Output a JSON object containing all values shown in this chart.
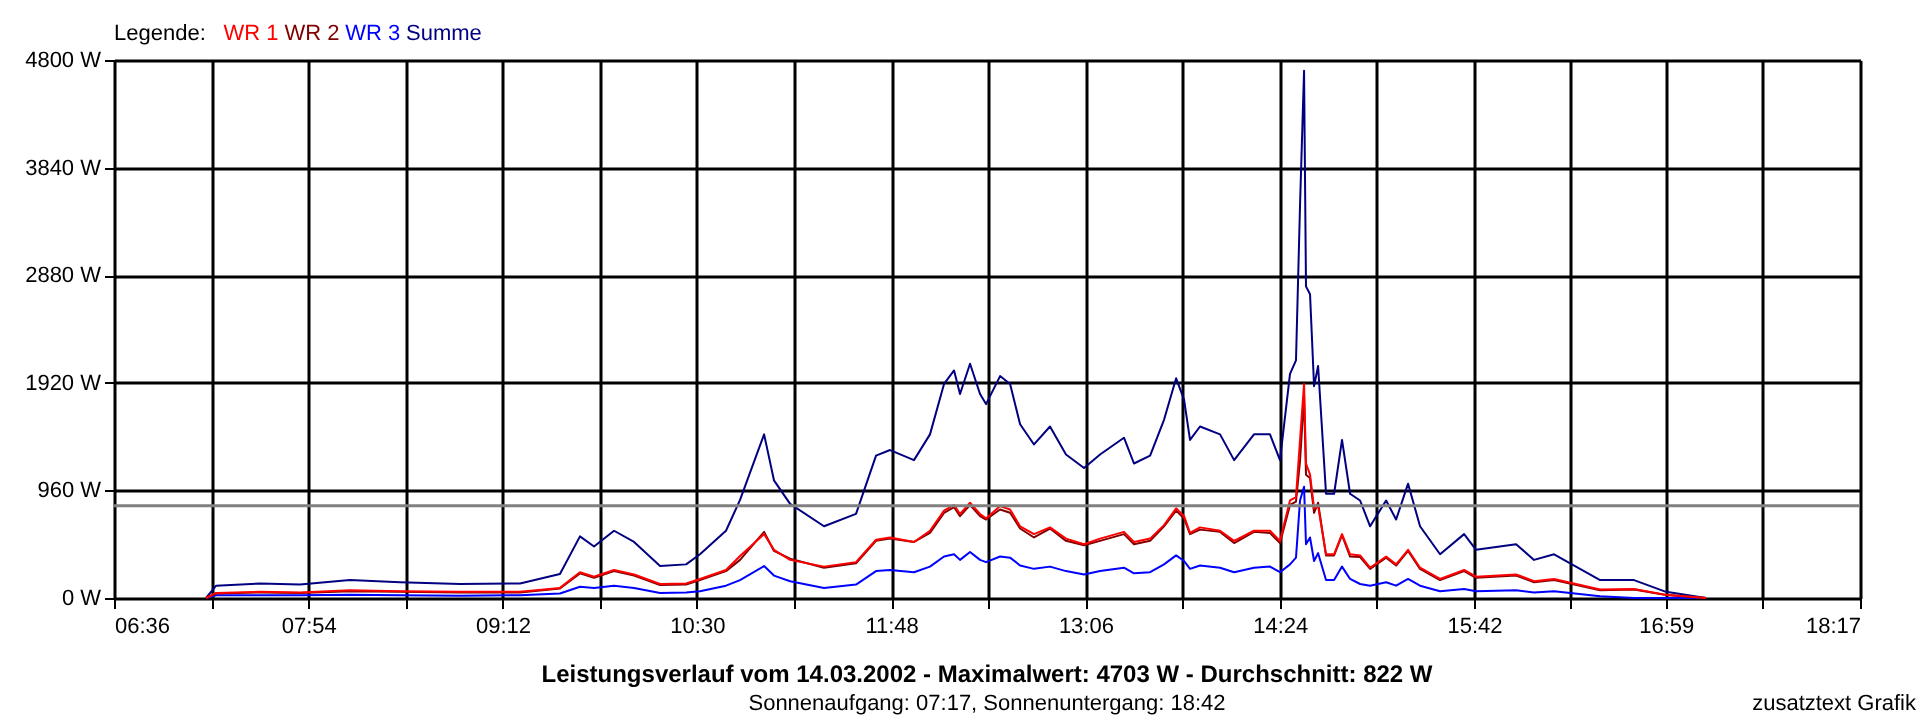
{
  "chart_data": {
    "type": "line",
    "title": "Leistungsverlauf vom 14.03.2002 - Maximalwert: 4703 W - Durchschnitt: 822 W",
    "subtitle": "Sonnenaufgang: 07:17, Sonnenuntergang: 18:42",
    "legend_title": "Legende:",
    "annotations": [
      "zusatztext Grafik"
    ],
    "x": [
      7.216,
      7.283,
      7.577,
      7.845,
      8.179,
      8.514,
      8.915,
      9.317,
      9.584,
      9.718,
      9.812,
      9.946,
      10.08,
      10.254,
      10.428,
      10.521,
      10.695,
      10.789,
      10.95,
      11.016,
      11.124,
      11.351,
      11.565,
      11.699,
      11.793,
      11.953,
      12.06,
      12.154,
      12.221,
      12.261,
      12.328,
      12.395,
      12.435,
      12.529,
      12.596,
      12.663,
      12.756,
      12.863,
      12.97,
      13.091,
      13.198,
      13.358,
      13.425,
      13.533,
      13.626,
      13.707,
      13.76,
      13.8,
      13.867,
      14.001,
      14.095,
      14.228,
      14.335,
      14.402,
      14.469,
      14.509,
      14.536,
      14.563,
      14.576,
      14.603,
      14.63,
      14.657,
      14.71,
      14.764,
      14.817,
      14.871,
      14.938,
      15.005,
      15.112,
      15.179,
      15.259,
      15.339,
      15.473,
      15.634,
      15.714,
      15.982,
      16.102,
      16.236,
      16.544,
      16.771,
      16.985,
      17.253
    ],
    "series": [
      {
        "name": "Summe",
        "color": "#000080",
        "values": [
          0,
          110,
          130,
          120,
          160,
          140,
          125,
          130,
          214,
          550,
          460,
          600,
          500,
          285,
          300,
          390,
          600,
          875,
          1460,
          1050,
          840,
          640,
          750,
          1270,
          1320,
          1230,
          1460,
          1910,
          2030,
          1820,
          2090,
          1820,
          1730,
          1980,
          1910,
          1550,
          1370,
          1530,
          1280,
          1160,
          1280,
          1430,
          1200,
          1270,
          1590,
          1960,
          1770,
          1410,
          1530,
          1460,
          1230,
          1460,
          1460,
          1230,
          2000,
          2120,
          3500,
          4703,
          2780,
          2710,
          1890,
          2070,
          930,
          930,
          1410,
          930,
          870,
          640,
          870,
          700,
          1020,
          640,
          390,
          570,
          430,
          480,
          340,
          390,
          160,
          160,
          55,
          0
        ]
      },
      {
        "name": "WR 3",
        "color": "#0000ff",
        "values": [
          0,
          25,
          25,
          25,
          30,
          25,
          20,
          25,
          40,
          100,
          90,
          110,
          90,
          45,
          50,
          60,
          110,
          160,
          285,
          200,
          150,
          90,
          120,
          240,
          250,
          230,
          280,
          370,
          390,
          340,
          410,
          340,
          320,
          370,
          360,
          290,
          260,
          280,
          240,
          210,
          240,
          270,
          220,
          230,
          300,
          380,
          330,
          260,
          290,
          270,
          230,
          270,
          280,
          230,
          300,
          360,
          870,
          993,
          480,
          540,
          330,
          400,
          160,
          160,
          280,
          170,
          125,
          110,
          140,
          110,
          170,
          110,
          60,
          80,
          60,
          70,
          50,
          60,
          15,
          0,
          0,
          0
        ]
      },
      {
        "name": "WR 2",
        "color": "#800000",
        "values": [
          0,
          40,
          50,
          45,
          60,
          55,
          50,
          50,
          85,
          220,
          180,
          240,
          200,
          115,
          120,
          160,
          240,
          340,
          590,
          420,
          350,
          270,
          310,
          510,
          530,
          500,
          580,
          760,
          810,
          730,
          830,
          730,
          700,
          790,
          760,
          620,
          540,
          620,
          510,
          470,
          510,
          570,
          480,
          510,
          640,
          780,
          710,
          570,
          610,
          590,
          490,
          590,
          580,
          490,
          830,
          860,
          1220,
          1800,
          1100,
          1070,
          760,
          850,
          380,
          380,
          560,
          370,
          365,
          260,
          360,
          290,
          420,
          260,
          160,
          240,
          180,
          200,
          140,
          160,
          70,
          75,
          27,
          0
        ]
      },
      {
        "name": "WR 1",
        "color": "#ff0000",
        "values": [
          0,
          45,
          55,
          50,
          70,
          60,
          55,
          55,
          90,
          230,
          190,
          250,
          210,
          125,
          130,
          170,
          250,
          375,
          570,
          430,
          340,
          280,
          320,
          520,
          540,
          500,
          600,
          780,
          830,
          750,
          850,
          750,
          710,
          820,
          790,
          640,
          570,
          630,
          530,
          480,
          530,
          590,
          500,
          530,
          650,
          800,
          730,
          580,
          630,
          600,
          510,
          600,
          600,
          510,
          870,
          900,
          1410,
          1910,
          1200,
          1100,
          800,
          820,
          390,
          390,
          570,
          390,
          380,
          270,
          370,
          300,
          430,
          270,
          170,
          250,
          190,
          210,
          150,
          170,
          75,
          80,
          28,
          0
        ]
      }
    ],
    "xlim": [
      6.6,
      18.283
    ],
    "xticks": [
      {
        "value": 6.6,
        "label": "06:36"
      },
      {
        "value": 7.25,
        "label": null
      },
      {
        "value": 7.9,
        "label": "07:54"
      },
      {
        "value": 8.55,
        "label": null
      },
      {
        "value": 9.2,
        "label": "09:12"
      },
      {
        "value": 9.85,
        "label": null
      },
      {
        "value": 10.5,
        "label": "10:30"
      },
      {
        "value": 11.15,
        "label": null
      },
      {
        "value": 11.8,
        "label": "11:48"
      },
      {
        "value": 12.45,
        "label": null
      },
      {
        "value": 13.1,
        "label": "13:06"
      },
      {
        "value": 13.75,
        "label": null
      },
      {
        "value": 14.4,
        "label": "14:24"
      },
      {
        "value": 15.05,
        "label": null
      },
      {
        "value": 15.7,
        "label": "15:42"
      },
      {
        "value": 16.342,
        "label": null
      },
      {
        "value": 16.983,
        "label": "16:59"
      },
      {
        "value": 17.633,
        "label": null
      },
      {
        "value": 18.283,
        "label": "18:17"
      }
    ],
    "ylim": [
      0,
      4800
    ],
    "yticks": [
      {
        "value": 0,
        "label": "0 W"
      },
      {
        "value": 960,
        "label": "960 W"
      },
      {
        "value": 1920,
        "label": "1920 W"
      },
      {
        "value": 2880,
        "label": "2880 W"
      },
      {
        "value": 3840,
        "label": "3840 W"
      },
      {
        "value": 4800,
        "label": "4800 W"
      }
    ],
    "ref_lines": [
      {
        "axis": "y",
        "value": 822,
        "label": null,
        "color": "#808080"
      }
    ],
    "grid": true,
    "legend": "top left",
    "line_style": "solid",
    "marker": "none"
  }
}
